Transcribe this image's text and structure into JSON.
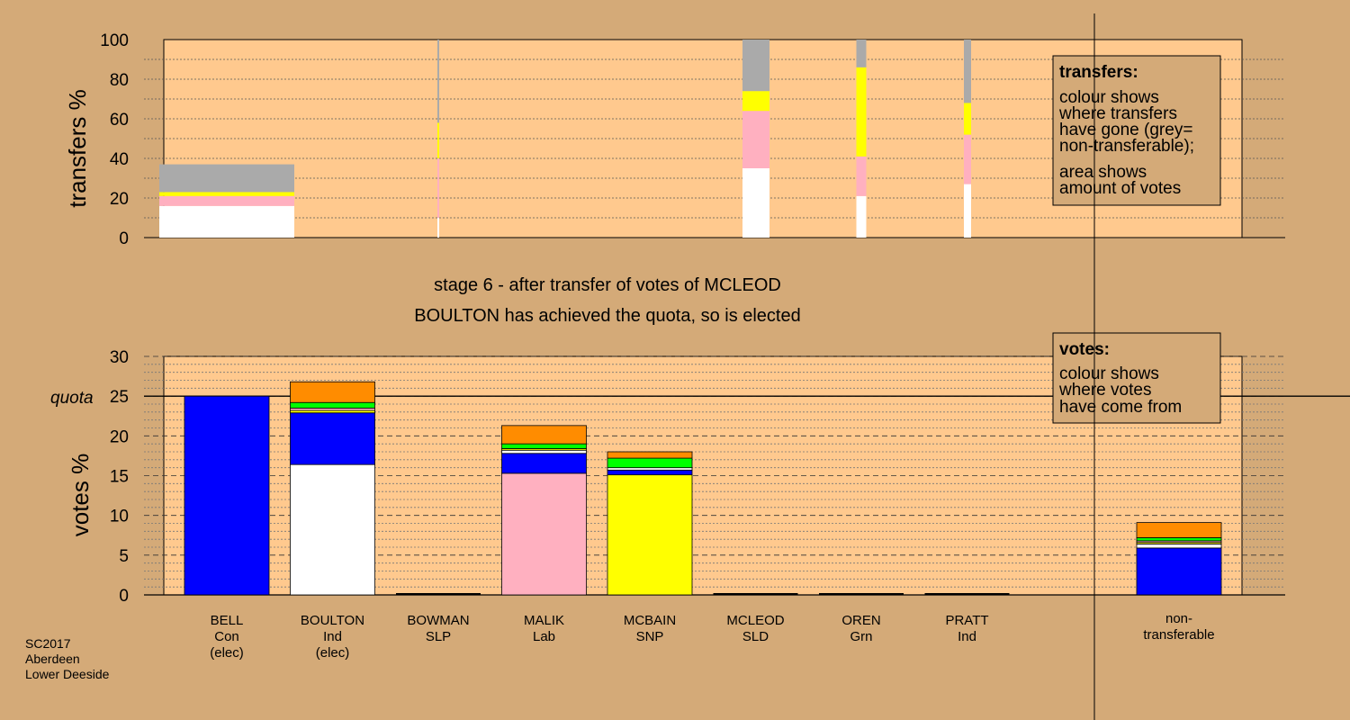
{
  "colors": {
    "background": "#d4aa78",
    "plot_area": "#ffc98e",
    "Con": "#0000ff",
    "Ind": "#ffffff",
    "Lab": "#ffb0c0",
    "SNP": "#ffff00",
    "SLD": "#ff8c00",
    "Grn": "#00ff00",
    "Nontransferable": "#aaaaaa",
    "SLP": "#cc0000"
  },
  "stage": {
    "line1": "stage 6 - after transfer of votes of MCLEOD",
    "line2": "BOULTON has achieved the quota, so is elected"
  },
  "quota_label": "quota",
  "transfers_box": {
    "title": "transfers:",
    "lines": [
      "colour shows",
      "where transfers",
      "have gone (grey=",
      "non-transferable);"
    ],
    "lines2": [
      "area shows",
      "amount of votes"
    ]
  },
  "votes_box": {
    "title": "votes:",
    "lines": [
      "colour shows",
      "where votes",
      "have come from"
    ]
  },
  "footer": [
    "SC2017",
    "Aberdeen",
    "Lower Deeside"
  ],
  "chart_data": [
    {
      "type": "bar",
      "name": "transfers",
      "ylabel": "transfers %",
      "ylim": [
        0,
        100
      ],
      "yticks": [
        0,
        20,
        40,
        60,
        80,
        100
      ],
      "note": "stacked bars; width proportional to amount of votes transferred",
      "bars": [
        {
          "source": "BELL",
          "width_share": 0.32,
          "segments": [
            {
              "party": "Ind",
              "value": 16
            },
            {
              "party": "Lab",
              "value": 5
            },
            {
              "party": "SNP",
              "value": 2
            },
            {
              "party": "Nontransferable",
              "value": 14
            }
          ]
        },
        {
          "source": "BOWMAN",
          "width_share": 0.004,
          "segments": [
            {
              "party": "Ind",
              "value": 10
            },
            {
              "party": "Lab",
              "value": 30
            },
            {
              "party": "SNP",
              "value": 18
            },
            {
              "party": "Nontransferable",
              "value": 42
            }
          ]
        },
        {
          "source": "MCLEOD",
          "width_share": 0.065,
          "segments": [
            {
              "party": "Ind",
              "value": 35
            },
            {
              "party": "Lab",
              "value": 29
            },
            {
              "party": "SNP",
              "value": 10
            },
            {
              "party": "Nontransferable",
              "value": 26
            }
          ]
        },
        {
          "source": "OREN",
          "width_share": 0.024,
          "segments": [
            {
              "party": "Ind",
              "value": 21
            },
            {
              "party": "Lab",
              "value": 20
            },
            {
              "party": "SNP",
              "value": 45
            },
            {
              "party": "Nontransferable",
              "value": 14
            }
          ]
        },
        {
          "source": "PRATT",
          "width_share": 0.017,
          "segments": [
            {
              "party": "Ind",
              "value": 27
            },
            {
              "party": "Lab",
              "value": 25
            },
            {
              "party": "SNP",
              "value": 16
            },
            {
              "party": "Nontransferable",
              "value": 32
            }
          ]
        }
      ]
    },
    {
      "type": "bar",
      "name": "votes",
      "ylabel": "votes %",
      "ylim": [
        0,
        30
      ],
      "yticks": [
        0,
        5,
        10,
        15,
        20,
        25,
        30
      ],
      "quota": 25,
      "candidates": [
        {
          "name": "BELL",
          "party": "Con",
          "note": "(elec)",
          "segments": [
            {
              "party": "Con",
              "value": 25.0
            }
          ]
        },
        {
          "name": "BOULTON",
          "party": "Ind",
          "note": "(elec)",
          "segments": [
            {
              "party": "Ind",
              "value": 16.4
            },
            {
              "party": "Con",
              "value": 6.5
            },
            {
              "party": "SNP",
              "value": 0.3
            },
            {
              "party": "Lab",
              "value": 0.3
            },
            {
              "party": "Grn",
              "value": 0.7
            },
            {
              "party": "SLD",
              "value": 2.6
            }
          ]
        },
        {
          "name": "BOWMAN",
          "party": "SLP",
          "note": "",
          "segments": []
        },
        {
          "name": "MALIK",
          "party": "Lab",
          "note": "",
          "segments": [
            {
              "party": "Lab",
              "value": 15.3
            },
            {
              "party": "Con",
              "value": 2.5
            },
            {
              "party": "Ind",
              "value": 0.4
            },
            {
              "party": "SNP",
              "value": 0.2
            },
            {
              "party": "Grn",
              "value": 0.6
            },
            {
              "party": "SLD",
              "value": 2.3
            }
          ]
        },
        {
          "name": "MCBAIN",
          "party": "SNP",
          "note": "",
          "segments": [
            {
              "party": "SNP",
              "value": 15.1
            },
            {
              "party": "Con",
              "value": 0.6
            },
            {
              "party": "Ind",
              "value": 0.3
            },
            {
              "party": "Grn",
              "value": 1.2
            },
            {
              "party": "SLD",
              "value": 0.8
            }
          ]
        },
        {
          "name": "MCLEOD",
          "party": "SLD",
          "note": "",
          "segments": []
        },
        {
          "name": "OREN",
          "party": "Grn",
          "note": "",
          "segments": []
        },
        {
          "name": "PRATT",
          "party": "Ind",
          "note": "",
          "segments": []
        }
      ],
      "nontransferable": {
        "label_lines": [
          "non-",
          "transferable"
        ],
        "segments": [
          {
            "party": "Con",
            "value": 5.9
          },
          {
            "party": "Ind",
            "value": 0.5
          },
          {
            "party": "SNP",
            "value": 0.2
          },
          {
            "party": "Lab",
            "value": 0.2
          },
          {
            "party": "Grn",
            "value": 0.4
          },
          {
            "party": "SLD",
            "value": 1.9
          }
        ]
      }
    }
  ]
}
